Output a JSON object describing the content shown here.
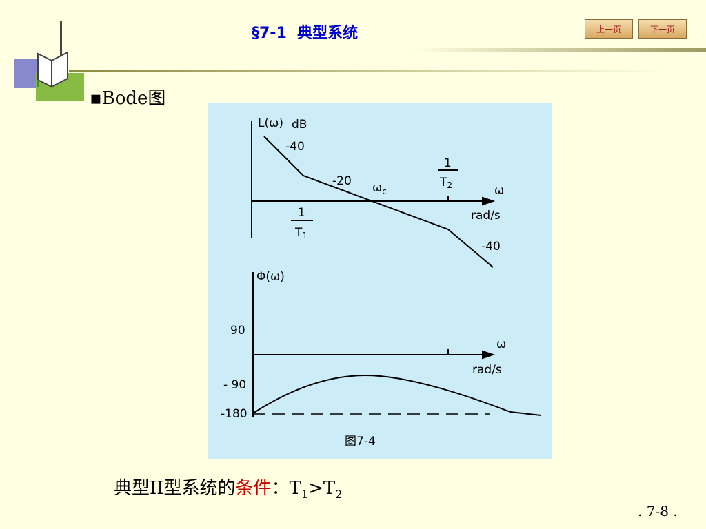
{
  "header": {
    "title": "§7-1  典型系统",
    "nav": [
      "上一页",
      "下一页"
    ]
  },
  "bullet": "Bode图",
  "figure": {
    "magnitude": {
      "y_label": "L(ω)",
      "unit": "dB",
      "slope_1": "-40",
      "slope_2": "-20",
      "slope_3": "-40",
      "crossover": "ω",
      "crossover_sub": "c",
      "break_1_num": "1",
      "break_1_den": "T",
      "break_1_sub": "1",
      "break_2_num": "1",
      "break_2_den": "T",
      "break_2_sub": "2",
      "x_label": "ω",
      "x_unit": "rad/s"
    },
    "phase": {
      "y_label": "Φ(ω)",
      "tick_90": "90",
      "tick_m90": "- 90",
      "tick_m180": "-180",
      "x_label": "ω",
      "x_unit": "rad/s"
    },
    "caption": "图7-4"
  },
  "condition": {
    "prefix": "典型II型系统的",
    "highlight": "条件",
    "text_1": "：T",
    "sub_1": "1",
    "text_2": ">T",
    "sub_2": "2"
  },
  "page_number": ". 7-8 ."
}
